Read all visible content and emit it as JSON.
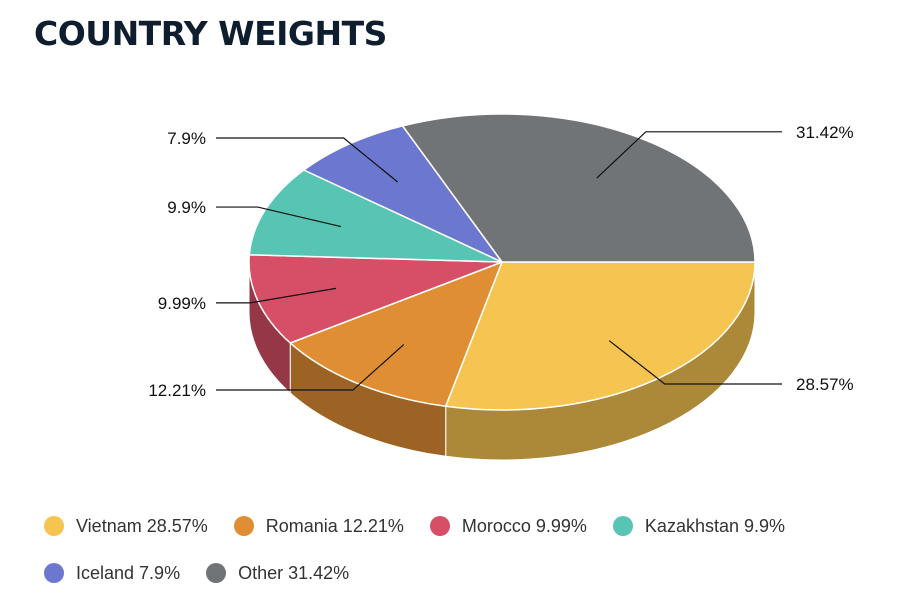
{
  "header": {
    "title": "COUNTRY WEIGHTS"
  },
  "chart_data": {
    "type": "pie",
    "style": "3d",
    "title": "COUNTRY WEIGHTS",
    "start_at": "3 o'clock, clockwise",
    "categories": [
      "Vietnam",
      "Romania",
      "Morocco",
      "Kazakhstan",
      "Iceland",
      "Other"
    ],
    "values": [
      28.57,
      12.21,
      9.99,
      9.9,
      7.9,
      31.42
    ],
    "data_labels": [
      "28.57%",
      "12.21%",
      "9.99%",
      "9.9%",
      "7.9%",
      "31.42%"
    ],
    "colors": [
      "#f5c451",
      "#e08e33",
      "#d64f66",
      "#57c4b4",
      "#6c78cf",
      "#717477"
    ],
    "legend": {
      "placement": "bottom",
      "entries": [
        "Vietnam 28.57%",
        "Romania 12.21%",
        "Morocco 9.99%",
        "Kazakhstan 9.9%",
        "Iceland 7.9%",
        "Other 31.42%"
      ]
    }
  }
}
